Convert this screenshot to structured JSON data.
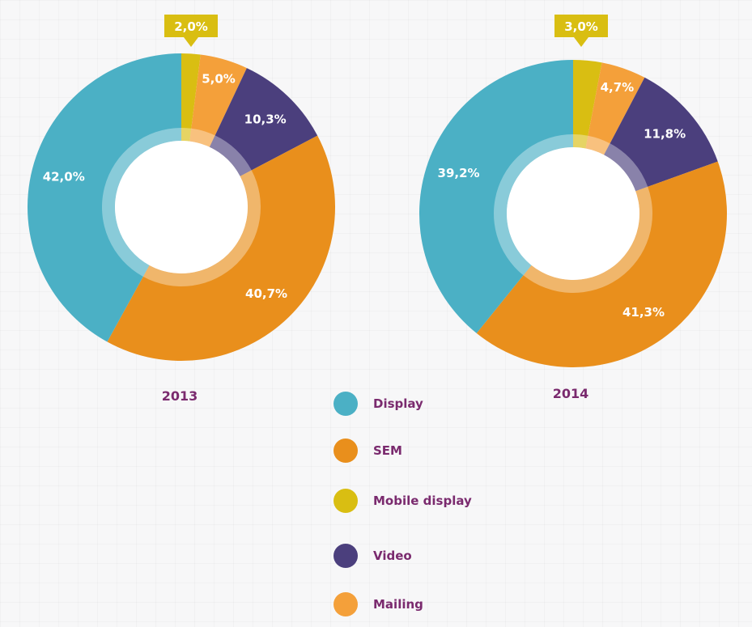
{
  "chart_data": [
    {
      "type": "pie",
      "title": "2013",
      "categories": [
        "Mobile display",
        "Mailing",
        "Video",
        "SEM",
        "Display"
      ],
      "values": [
        2.0,
        5.0,
        10.3,
        40.7,
        42.0
      ],
      "labels": [
        "2,0%",
        "5,0%",
        "10,3%",
        "40,7%",
        "42,0%"
      ]
    },
    {
      "type": "pie",
      "title": "2014",
      "categories": [
        "Mobile display",
        "Mailing",
        "Video",
        "SEM",
        "Display"
      ],
      "values": [
        3.0,
        4.7,
        11.8,
        41.3,
        39.2
      ],
      "labels": [
        "3,0%",
        "4,7%",
        "11,8%",
        "41,3%",
        "39,2%"
      ]
    }
  ],
  "legend": [
    {
      "label": "Display",
      "color": "#4bb0c5"
    },
    {
      "label": "SEM",
      "color": "#e98f1c"
    },
    {
      "label": "Mobile display",
      "color": "#d9be12"
    },
    {
      "label": "Video",
      "color": "#4b3f7d"
    },
    {
      "label": "Mailing",
      "color": "#f4a03a"
    }
  ],
  "colors": {
    "Display": "#4bb0c5",
    "SEM": "#e98f1c",
    "Mobile display": "#d9be12",
    "Video": "#4b3f7d",
    "Mailing": "#f4a03a",
    "year_text": "#7a2a6e"
  }
}
